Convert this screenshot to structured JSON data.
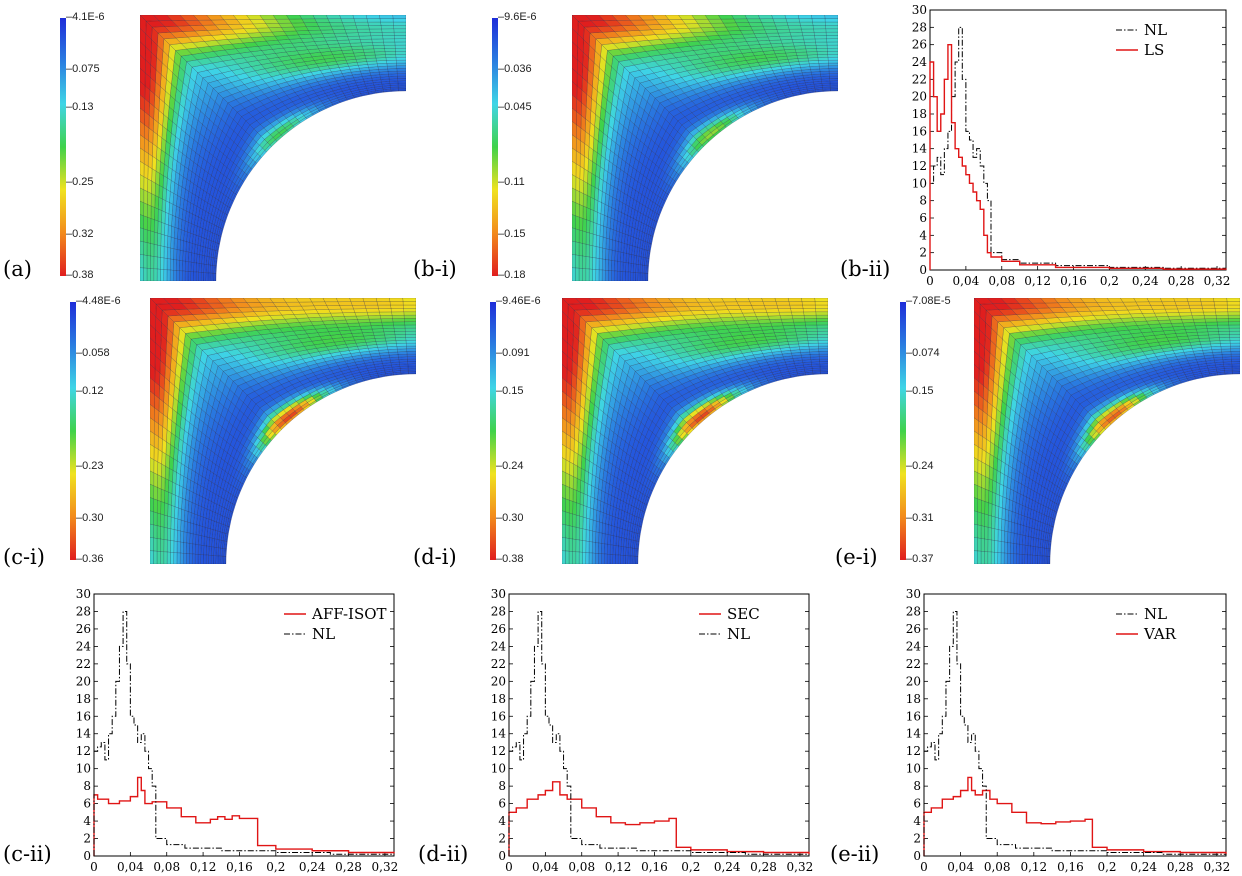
{
  "colors": {
    "scale": [
      "#1e2dd9",
      "#2a7de0",
      "#3fd5e6",
      "#3fd24a",
      "#f0e21f",
      "#f28a1c",
      "#e01e1e"
    ],
    "nl_line": "#000000",
    "model_line": "#e01515"
  },
  "fields": [
    {
      "id": "a",
      "label": "(a)",
      "colorbar_ticks": [
        "4.1E-6",
        "0.075",
        "0.13",
        "0.25",
        "0.32",
        "0.38"
      ],
      "tick_levels": [
        0.0,
        0.2,
        0.35,
        0.64,
        0.84,
        1.0
      ]
    },
    {
      "id": "b-i",
      "label": "(b-i)",
      "colorbar_ticks": [
        "9.6E-6",
        "0.036",
        "0.045",
        "0.11",
        "0.15",
        "0.18"
      ],
      "tick_levels": [
        0.0,
        0.2,
        0.35,
        0.64,
        0.84,
        1.0
      ]
    },
    {
      "id": "c-i",
      "label": "(c-i)",
      "colorbar_ticks": [
        "4.48E-6",
        "0.058",
        "0.12",
        "0.23",
        "0.30",
        "0.36"
      ],
      "tick_levels": [
        0.0,
        0.2,
        0.35,
        0.64,
        0.84,
        1.0
      ]
    },
    {
      "id": "d-i",
      "label": "(d-i)",
      "colorbar_ticks": [
        "9.46E-6",
        "0.091",
        "0.15",
        "0.24",
        "0.30",
        "0.38"
      ],
      "tick_levels": [
        0.0,
        0.2,
        0.35,
        0.64,
        0.84,
        1.0
      ]
    },
    {
      "id": "e-i",
      "label": "(e-i)",
      "colorbar_ticks": [
        "7.08E-5",
        "0.074",
        "0.15",
        "0.24",
        "0.31",
        "0.37"
      ],
      "tick_levels": [
        0.0,
        0.2,
        0.35,
        0.64,
        0.84,
        1.0
      ]
    }
  ],
  "chart_data": [
    {
      "id": "b-ii",
      "label": "(b-ii)",
      "type": "line",
      "xlim": [
        0,
        0.33
      ],
      "ylim": [
        0,
        30
      ],
      "xticks": [
        "0",
        "0,04",
        "0,08",
        "0,12",
        "0,16",
        "0,2",
        "0,24",
        "0,28",
        "0,32"
      ],
      "yticks": [
        "0",
        "2",
        "4",
        "6",
        "8",
        "10",
        "12",
        "14",
        "16",
        "18",
        "20",
        "22",
        "24",
        "26",
        "28",
        "30"
      ],
      "legend": [
        "NL",
        "LS"
      ],
      "legend_order": [
        "nl",
        "model"
      ],
      "series": [
        {
          "name": "NL",
          "style": "dashdot",
          "x": [
            0,
            0.004,
            0.008,
            0.012,
            0.016,
            0.02,
            0.024,
            0.028,
            0.032,
            0.036,
            0.04,
            0.044,
            0.048,
            0.052,
            0.056,
            0.06,
            0.064,
            0.068,
            0.08,
            0.1,
            0.14,
            0.2,
            0.26,
            0.33
          ],
          "y": [
            10,
            12,
            13,
            11,
            14,
            16,
            20,
            24,
            28,
            22,
            16,
            15,
            13,
            14,
            12,
            10,
            8,
            2,
            1.2,
            0.8,
            0.5,
            0.3,
            0.2,
            0.1
          ]
        },
        {
          "name": "LS",
          "style": "solid",
          "x": [
            0,
            0.004,
            0.008,
            0.012,
            0.016,
            0.02,
            0.024,
            0.028,
            0.032,
            0.036,
            0.04,
            0.044,
            0.048,
            0.052,
            0.056,
            0.06,
            0.064,
            0.068,
            0.08,
            0.1,
            0.14,
            0.2,
            0.26,
            0.33
          ],
          "y": [
            24,
            20,
            16,
            18,
            22,
            26,
            17,
            14,
            13,
            12,
            11,
            10,
            9,
            8,
            7,
            4,
            2,
            1.5,
            1,
            0.6,
            0.3,
            0.2,
            0.1,
            0.05
          ]
        }
      ]
    },
    {
      "id": "c-ii",
      "label": "(c-ii)",
      "type": "line",
      "xlim": [
        0,
        0.33
      ],
      "ylim": [
        0,
        30
      ],
      "xticks": [
        "0",
        "0,04",
        "0,08",
        "0,12",
        "0,16",
        "0,2",
        "0,24",
        "0,28",
        "0,32"
      ],
      "yticks": [
        "0",
        "2",
        "4",
        "6",
        "8",
        "10",
        "12",
        "14",
        "16",
        "18",
        "20",
        "22",
        "24",
        "26",
        "28",
        "30"
      ],
      "legend": [
        "AFF-ISOT",
        "NL"
      ],
      "legend_order": [
        "model",
        "nl"
      ],
      "series": [
        {
          "name": "AFF-ISOT",
          "style": "solid",
          "x": [
            0,
            0.004,
            0.016,
            0.028,
            0.04,
            0.048,
            0.052,
            0.056,
            0.064,
            0.08,
            0.096,
            0.112,
            0.128,
            0.136,
            0.144,
            0.152,
            0.16,
            0.176,
            0.18,
            0.2,
            0.24,
            0.28,
            0.33
          ],
          "y": [
            7,
            6.5,
            6,
            6.3,
            6.8,
            9,
            7.5,
            6,
            6.2,
            5.5,
            4.5,
            3.8,
            4.2,
            4.5,
            4.2,
            4.6,
            4.3,
            4.3,
            1.2,
            0.8,
            0.6,
            0.4,
            0.3
          ]
        },
        {
          "name": "NL",
          "style": "dashdot",
          "x": [
            0,
            0.004,
            0.008,
            0.012,
            0.016,
            0.02,
            0.024,
            0.028,
            0.032,
            0.036,
            0.04,
            0.044,
            0.048,
            0.052,
            0.056,
            0.06,
            0.064,
            0.068,
            0.08,
            0.1,
            0.14,
            0.2,
            0.26,
            0.33
          ],
          "y": [
            12,
            12.5,
            13,
            11,
            14,
            16,
            20,
            24,
            28,
            22,
            16,
            15,
            13,
            14,
            12,
            10,
            8,
            2,
            1.3,
            0.9,
            0.6,
            0.4,
            0.2,
            0.1
          ]
        }
      ]
    },
    {
      "id": "d-ii",
      "label": "(d-ii)",
      "type": "line",
      "xlim": [
        0,
        0.33
      ],
      "ylim": [
        0,
        30
      ],
      "xticks": [
        "0",
        "0,04",
        "0,08",
        "0,12",
        "0,16",
        "0,2",
        "0,24",
        "0,28",
        "0,32"
      ],
      "yticks": [
        "0",
        "2",
        "4",
        "6",
        "8",
        "10",
        "12",
        "14",
        "16",
        "18",
        "20",
        "22",
        "24",
        "26",
        "28",
        "30"
      ],
      "legend": [
        "SEC",
        "NL"
      ],
      "legend_order": [
        "model",
        "nl"
      ],
      "series": [
        {
          "name": "SEC",
          "style": "solid",
          "x": [
            0,
            0.008,
            0.02,
            0.032,
            0.04,
            0.048,
            0.056,
            0.064,
            0.08,
            0.096,
            0.112,
            0.128,
            0.144,
            0.16,
            0.176,
            0.184,
            0.2,
            0.24,
            0.28,
            0.33
          ],
          "y": [
            5,
            5.5,
            6.5,
            7,
            7.5,
            8.5,
            7,
            6.5,
            5.5,
            4.5,
            3.8,
            3.6,
            3.8,
            4,
            4.3,
            1,
            0.7,
            0.5,
            0.4,
            0.2
          ]
        },
        {
          "name": "NL",
          "style": "dashdot",
          "x": [
            0,
            0.004,
            0.008,
            0.012,
            0.016,
            0.02,
            0.024,
            0.028,
            0.032,
            0.036,
            0.04,
            0.044,
            0.048,
            0.052,
            0.056,
            0.06,
            0.064,
            0.068,
            0.08,
            0.1,
            0.14,
            0.2,
            0.26,
            0.33
          ],
          "y": [
            12,
            12.5,
            13,
            11,
            14,
            16,
            20,
            24,
            28,
            22,
            16,
            15,
            13,
            14,
            12,
            10,
            8,
            2,
            1.3,
            0.9,
            0.6,
            0.4,
            0.2,
            0.1
          ]
        }
      ]
    },
    {
      "id": "e-ii",
      "label": "(e-ii)",
      "type": "line",
      "xlim": [
        0,
        0.33
      ],
      "ylim": [
        0,
        30
      ],
      "xticks": [
        "0",
        "0,04",
        "0,08",
        "0,12",
        "0,16",
        "0,2",
        "0,24",
        "0,28",
        "0,32"
      ],
      "yticks": [
        "0",
        "2",
        "4",
        "6",
        "8",
        "10",
        "12",
        "14",
        "16",
        "18",
        "20",
        "22",
        "24",
        "26",
        "28",
        "30"
      ],
      "legend": [
        "NL",
        "VAR"
      ],
      "legend_order": [
        "nl",
        "model"
      ],
      "series": [
        {
          "name": "VAR",
          "style": "solid",
          "x": [
            0,
            0.008,
            0.02,
            0.032,
            0.04,
            0.048,
            0.052,
            0.056,
            0.064,
            0.072,
            0.08,
            0.096,
            0.112,
            0.128,
            0.144,
            0.16,
            0.176,
            0.184,
            0.2,
            0.24,
            0.28,
            0.33
          ],
          "y": [
            5,
            5.5,
            6.5,
            6.8,
            7.5,
            9,
            7.5,
            7,
            7.5,
            6.5,
            6,
            5,
            3.8,
            3.7,
            3.9,
            4,
            4.2,
            1,
            0.7,
            0.5,
            0.4,
            0.2
          ]
        },
        {
          "name": "NL",
          "style": "dashdot",
          "x": [
            0,
            0.004,
            0.008,
            0.012,
            0.016,
            0.02,
            0.024,
            0.028,
            0.032,
            0.036,
            0.04,
            0.044,
            0.048,
            0.052,
            0.056,
            0.06,
            0.064,
            0.068,
            0.08,
            0.1,
            0.14,
            0.2,
            0.26,
            0.33
          ],
          "y": [
            12,
            12.5,
            13,
            11,
            14,
            16,
            20,
            24,
            28,
            22,
            16,
            15,
            13,
            14,
            12,
            10,
            8,
            2,
            1.3,
            0.9,
            0.6,
            0.4,
            0.2,
            0.1
          ]
        }
      ]
    }
  ]
}
